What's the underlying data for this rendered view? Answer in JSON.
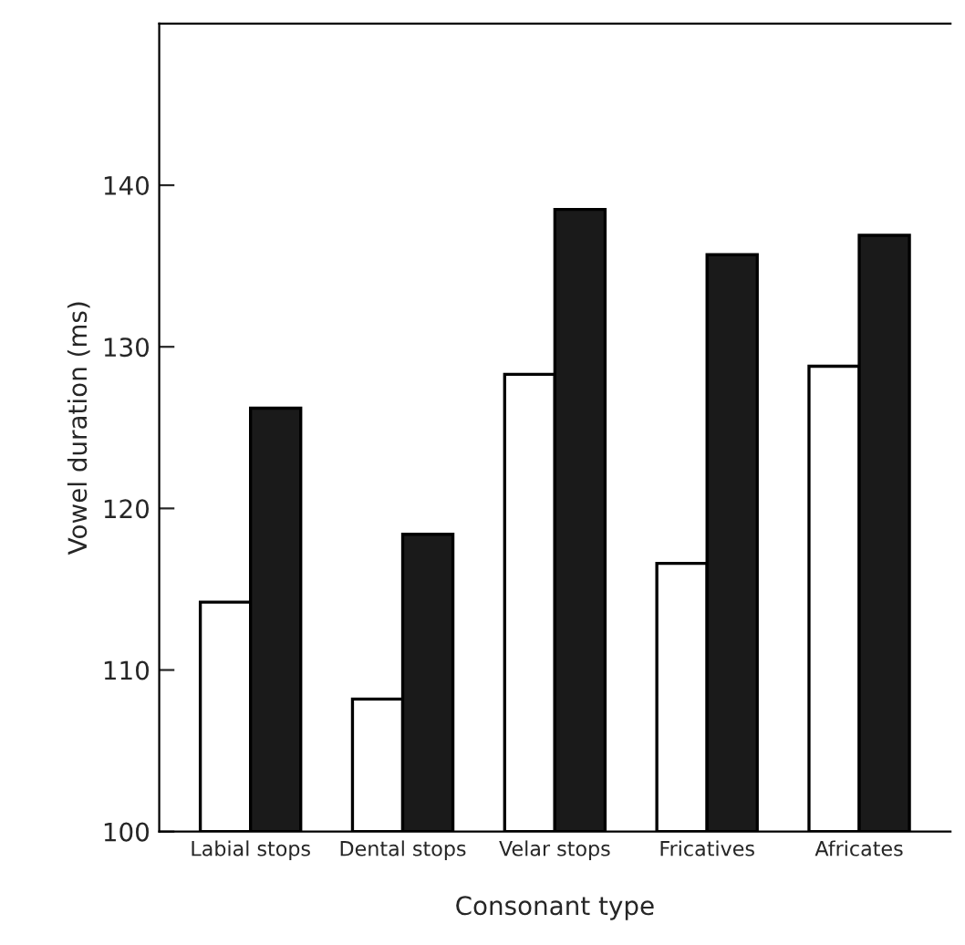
{
  "chart_data": {
    "type": "bar",
    "xlabel": "Consonant type",
    "ylabel": "Vowel duration (ms)",
    "categories": [
      "Labial stops",
      "Dental stops",
      "Velar stops",
      "Fricatives",
      "Africates"
    ],
    "series": [
      {
        "color": "#ffffff",
        "values": [
          114.2,
          108.2,
          128.3,
          116.6,
          128.8
        ]
      },
      {
        "color": "#1a1a1a",
        "values": [
          126.2,
          118.4,
          138.5,
          135.7,
          136.9
        ]
      }
    ],
    "ylim": [
      100,
      150
    ],
    "yticks": [
      100,
      110,
      120,
      130,
      140
    ],
    "grid": false,
    "legend": false
  }
}
